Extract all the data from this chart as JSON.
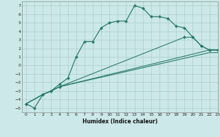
{
  "xlabel": "Humidex (Indice chaleur)",
  "xlim": [
    -0.5,
    23
  ],
  "ylim": [
    -5.5,
    7.5
  ],
  "yticks": [
    -5,
    -4,
    -3,
    -2,
    -1,
    0,
    1,
    2,
    3,
    4,
    5,
    6,
    7
  ],
  "xticks": [
    0,
    1,
    2,
    3,
    4,
    5,
    6,
    7,
    8,
    9,
    10,
    11,
    12,
    13,
    14,
    15,
    16,
    17,
    18,
    19,
    20,
    21,
    22,
    23
  ],
  "bg_color": "#cce8e8",
  "grid_color": "#aacccc",
  "line_color": "#2a7a6a",
  "line1_x": [
    0,
    1,
    2,
    3,
    4,
    5,
    6,
    7,
    8,
    9,
    10,
    11,
    12,
    13,
    14,
    15,
    16,
    17,
    18,
    19,
    20,
    21,
    22,
    23
  ],
  "line1_y": [
    -4.5,
    -5.0,
    -3.4,
    -3.0,
    -2.2,
    -1.5,
    1.0,
    2.8,
    2.8,
    4.4,
    5.0,
    5.2,
    5.2,
    7.0,
    6.7,
    5.7,
    5.7,
    5.5,
    4.6,
    4.4,
    3.3,
    2.3,
    1.8,
    1.8
  ],
  "line2_x": [
    0,
    2,
    3,
    4,
    22,
    23
  ],
  "line2_y": [
    -4.5,
    -3.4,
    -3.0,
    -2.5,
    1.8,
    1.8
  ],
  "line3_x": [
    0,
    2,
    3,
    4,
    22,
    23
  ],
  "line3_y": [
    -4.5,
    -3.4,
    -3.0,
    -2.5,
    1.5,
    1.5
  ],
  "line4_x": [
    0,
    2,
    3,
    4,
    19,
    20,
    21,
    22,
    23
  ],
  "line4_y": [
    -4.5,
    -3.4,
    -3.0,
    -2.5,
    3.3,
    3.3,
    2.3,
    1.8,
    1.8
  ]
}
